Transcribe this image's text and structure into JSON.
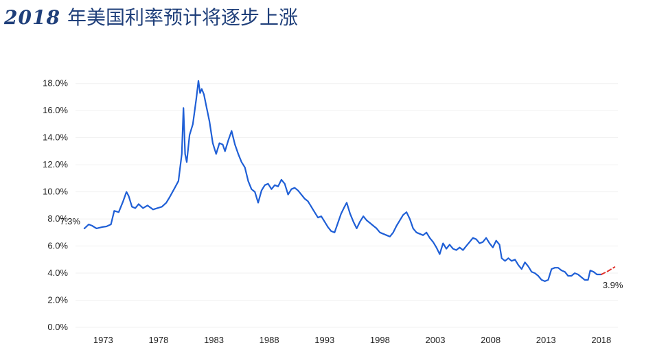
{
  "title": {
    "year": "2018",
    "text": "年美国利率预计将逐步上涨"
  },
  "colors": {
    "series": "#1f5fd6",
    "projection": "#e0312b",
    "title": "#1f3f7a",
    "grid": "#f1f1f1"
  },
  "chart_data": {
    "type": "line",
    "title": "2018 年美国利率预计将逐步上涨",
    "xlabel": "",
    "ylabel": "",
    "xlim": [
      1970.5,
      2019.5
    ],
    "ylim": [
      0,
      19
    ],
    "grid": true,
    "x_ticks": [
      1973,
      1978,
      1983,
      1988,
      1993,
      1998,
      2003,
      2008,
      2013,
      2018
    ],
    "x_tick_labels": [
      "1973",
      "1978",
      "1983",
      "1988",
      "1993",
      "1998",
      "2003",
      "2008",
      "2013",
      "2018"
    ],
    "y_ticks": [
      0,
      2,
      4,
      6,
      8,
      10,
      12,
      14,
      16,
      18
    ],
    "y_tick_labels": [
      "0.0%",
      "2.0%",
      "4.0%",
      "6.0%",
      "8.0%",
      "10.0%",
      "12.0%",
      "14.0%",
      "16.0%",
      "18.0%"
    ],
    "annotations": [
      {
        "text": "7.3%",
        "x": 1971.3,
        "y": 7.3
      },
      {
        "text": "3.9%",
        "x": 2018.0,
        "y": 3.9
      }
    ],
    "series": [
      {
        "values": [
          [
            1971.3,
            7.3
          ],
          [
            1971.7,
            7.6
          ],
          [
            1972.0,
            7.5
          ],
          [
            1972.4,
            7.3
          ],
          [
            1972.9,
            7.4
          ],
          [
            1973.3,
            7.45
          ],
          [
            1973.7,
            7.6
          ],
          [
            1974.0,
            8.6
          ],
          [
            1974.4,
            8.5
          ],
          [
            1974.8,
            9.3
          ],
          [
            1975.1,
            10.0
          ],
          [
            1975.3,
            9.7
          ],
          [
            1975.6,
            8.9
          ],
          [
            1975.9,
            8.8
          ],
          [
            1976.2,
            9.1
          ],
          [
            1976.6,
            8.8
          ],
          [
            1977.0,
            9.0
          ],
          [
            1977.5,
            8.7
          ],
          [
            1977.9,
            8.8
          ],
          [
            1978.3,
            8.9
          ],
          [
            1978.7,
            9.2
          ],
          [
            1979.0,
            9.6
          ],
          [
            1979.4,
            10.2
          ],
          [
            1979.8,
            10.8
          ],
          [
            1980.1,
            12.8
          ],
          [
            1980.25,
            16.2
          ],
          [
            1980.4,
            12.8
          ],
          [
            1980.55,
            12.2
          ],
          [
            1980.8,
            14.2
          ],
          [
            1981.1,
            15.0
          ],
          [
            1981.4,
            16.8
          ],
          [
            1981.6,
            18.2
          ],
          [
            1981.75,
            17.3
          ],
          [
            1981.9,
            17.6
          ],
          [
            1982.1,
            17.2
          ],
          [
            1982.3,
            16.4
          ],
          [
            1982.6,
            15.2
          ],
          [
            1982.9,
            13.6
          ],
          [
            1983.2,
            12.8
          ],
          [
            1983.5,
            13.6
          ],
          [
            1983.8,
            13.5
          ],
          [
            1984.0,
            13.0
          ],
          [
            1984.3,
            13.8
          ],
          [
            1984.6,
            14.5
          ],
          [
            1984.9,
            13.5
          ],
          [
            1985.2,
            12.8
          ],
          [
            1985.5,
            12.2
          ],
          [
            1985.8,
            11.8
          ],
          [
            1986.1,
            10.8
          ],
          [
            1986.4,
            10.2
          ],
          [
            1986.7,
            10.0
          ],
          [
            1987.0,
            9.2
          ],
          [
            1987.3,
            10.1
          ],
          [
            1987.6,
            10.5
          ],
          [
            1987.9,
            10.6
          ],
          [
            1988.2,
            10.2
          ],
          [
            1988.5,
            10.5
          ],
          [
            1988.8,
            10.4
          ],
          [
            1989.1,
            10.9
          ],
          [
            1989.4,
            10.6
          ],
          [
            1989.7,
            9.8
          ],
          [
            1990.0,
            10.2
          ],
          [
            1990.3,
            10.3
          ],
          [
            1990.6,
            10.1
          ],
          [
            1990.9,
            9.8
          ],
          [
            1991.2,
            9.5
          ],
          [
            1991.5,
            9.3
          ],
          [
            1991.8,
            8.9
          ],
          [
            1992.1,
            8.5
          ],
          [
            1992.4,
            8.1
          ],
          [
            1992.7,
            8.2
          ],
          [
            1993.0,
            7.8
          ],
          [
            1993.3,
            7.4
          ],
          [
            1993.6,
            7.1
          ],
          [
            1993.9,
            7.0
          ],
          [
            1994.2,
            7.7
          ],
          [
            1994.5,
            8.4
          ],
          [
            1994.8,
            8.9
          ],
          [
            1995.0,
            9.2
          ],
          [
            1995.3,
            8.4
          ],
          [
            1995.6,
            7.8
          ],
          [
            1995.9,
            7.3
          ],
          [
            1996.2,
            7.8
          ],
          [
            1996.5,
            8.2
          ],
          [
            1996.8,
            7.9
          ],
          [
            1997.1,
            7.7
          ],
          [
            1997.4,
            7.5
          ],
          [
            1997.7,
            7.3
          ],
          [
            1998.0,
            7.0
          ],
          [
            1998.3,
            6.9
          ],
          [
            1998.6,
            6.8
          ],
          [
            1998.9,
            6.7
          ],
          [
            1999.2,
            7.0
          ],
          [
            1999.5,
            7.5
          ],
          [
            1999.8,
            7.9
          ],
          [
            2000.1,
            8.3
          ],
          [
            2000.4,
            8.5
          ],
          [
            2000.7,
            8.0
          ],
          [
            2001.0,
            7.3
          ],
          [
            2001.3,
            7.0
          ],
          [
            2001.6,
            6.9
          ],
          [
            2001.9,
            6.8
          ],
          [
            2002.2,
            7.0
          ],
          [
            2002.5,
            6.6
          ],
          [
            2002.8,
            6.3
          ],
          [
            2003.1,
            5.9
          ],
          [
            2003.4,
            5.4
          ],
          [
            2003.7,
            6.2
          ],
          [
            2004.0,
            5.8
          ],
          [
            2004.3,
            6.1
          ],
          [
            2004.6,
            5.8
          ],
          [
            2004.9,
            5.7
          ],
          [
            2005.2,
            5.9
          ],
          [
            2005.5,
            5.7
          ],
          [
            2005.8,
            6.0
          ],
          [
            2006.1,
            6.3
          ],
          [
            2006.4,
            6.6
          ],
          [
            2006.7,
            6.5
          ],
          [
            2007.0,
            6.2
          ],
          [
            2007.3,
            6.3
          ],
          [
            2007.6,
            6.6
          ],
          [
            2007.9,
            6.2
          ],
          [
            2008.2,
            5.9
          ],
          [
            2008.5,
            6.4
          ],
          [
            2008.8,
            6.1
          ],
          [
            2009.0,
            5.1
          ],
          [
            2009.3,
            4.9
          ],
          [
            2009.6,
            5.1
          ],
          [
            2009.9,
            4.9
          ],
          [
            2010.2,
            5.0
          ],
          [
            2010.5,
            4.6
          ],
          [
            2010.8,
            4.3
          ],
          [
            2011.1,
            4.8
          ],
          [
            2011.4,
            4.5
          ],
          [
            2011.7,
            4.1
          ],
          [
            2012.0,
            4.0
          ],
          [
            2012.3,
            3.8
          ],
          [
            2012.6,
            3.5
          ],
          [
            2012.9,
            3.4
          ],
          [
            2013.2,
            3.5
          ],
          [
            2013.5,
            4.3
          ],
          [
            2013.8,
            4.4
          ],
          [
            2014.1,
            4.4
          ],
          [
            2014.4,
            4.2
          ],
          [
            2014.7,
            4.1
          ],
          [
            2015.0,
            3.8
          ],
          [
            2015.3,
            3.8
          ],
          [
            2015.6,
            4.0
          ],
          [
            2015.9,
            3.9
          ],
          [
            2016.2,
            3.7
          ],
          [
            2016.5,
            3.5
          ],
          [
            2016.8,
            3.5
          ],
          [
            2017.0,
            4.2
          ],
          [
            2017.3,
            4.1
          ],
          [
            2017.6,
            3.9
          ],
          [
            2017.9,
            3.9
          ],
          [
            2018.0,
            3.9
          ]
        ]
      },
      {
        "style": "dashed",
        "values": [
          [
            2018.0,
            3.9
          ],
          [
            2018.6,
            4.15
          ],
          [
            2019.2,
            4.45
          ]
        ]
      }
    ]
  }
}
